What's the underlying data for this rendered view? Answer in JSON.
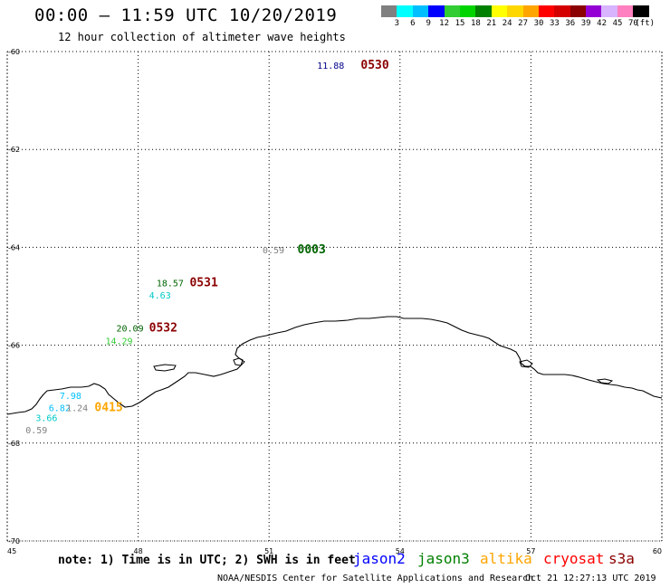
{
  "header": {
    "title": "00:00 – 11:59 UTC 10/20/2019",
    "subtitle": "12 hour collection of altimeter wave heights"
  },
  "colorbar": {
    "swatches": [
      {
        "label": "3",
        "color": "#808080"
      },
      {
        "label": "6",
        "color": "#00ffff"
      },
      {
        "label": "9",
        "color": "#00bfff"
      },
      {
        "label": "12",
        "color": "#0000ff"
      },
      {
        "label": "15",
        "color": "#32cd32"
      },
      {
        "label": "18",
        "color": "#00d400"
      },
      {
        "label": "21",
        "color": "#008000"
      },
      {
        "label": "24",
        "color": "#ffff00"
      },
      {
        "label": "27",
        "color": "#ffd700"
      },
      {
        "label": "30",
        "color": "#ffa500"
      },
      {
        "label": "33",
        "color": "#ff0000"
      },
      {
        "label": "36",
        "color": "#d40000"
      },
      {
        "label": "39",
        "color": "#8b0000"
      },
      {
        "label": "42",
        "color": "#9400d3"
      },
      {
        "label": "45",
        "color": "#d8b4fe"
      },
      {
        "label": "70",
        "color": "#ff80c0"
      },
      {
        "label": "",
        "color": "#000000"
      }
    ],
    "unit": "(ft)"
  },
  "map": {
    "lat_labels": [
      "-60",
      "-62",
      "-64",
      "-66",
      "-68",
      "-70"
    ],
    "lon_labels": [
      "45",
      "48",
      "51",
      "54",
      "57",
      "60"
    ],
    "lat_values": [
      -60,
      -62,
      -64,
      -66,
      -68,
      -70
    ],
    "lon_values": [
      45,
      48,
      51,
      54,
      57,
      60
    ],
    "observations": [
      {
        "text": "11.88",
        "lon": 52.1,
        "lat": -60.35,
        "color": "#00008b",
        "size": 10,
        "kind": "value"
      },
      {
        "text": "0530",
        "lon": 53.1,
        "lat": -60.35,
        "color": "#8b0000",
        "size": 13,
        "kind": "time"
      },
      {
        "text": "0.59",
        "lon": 50.85,
        "lat": -64.12,
        "color": "#808080",
        "size": 10,
        "kind": "value"
      },
      {
        "text": "0003",
        "lon": 51.65,
        "lat": -64.12,
        "color": "#006400",
        "size": 13,
        "kind": "time"
      },
      {
        "text": "18.57",
        "lon": 48.42,
        "lat": -64.8,
        "color": "#006400",
        "size": 10,
        "kind": "value"
      },
      {
        "text": "0531",
        "lon": 49.18,
        "lat": -64.8,
        "color": "#8b0000",
        "size": 13,
        "kind": "time"
      },
      {
        "text": "4.63",
        "lon": 48.25,
        "lat": -65.05,
        "color": "#00c8c8",
        "size": 10,
        "kind": "value"
      },
      {
        "text": "20.09",
        "lon": 47.5,
        "lat": -65.72,
        "color": "#006400",
        "size": 10,
        "kind": "value"
      },
      {
        "text": "0532",
        "lon": 48.25,
        "lat": -65.72,
        "color": "#8b0000",
        "size": 13,
        "kind": "time"
      },
      {
        "text": "14.29",
        "lon": 47.25,
        "lat": -65.98,
        "color": "#32cd32",
        "size": 10,
        "kind": "value"
      },
      {
        "text": "7.98",
        "lon": 46.2,
        "lat": -67.1,
        "color": "#00bfff",
        "size": 10,
        "kind": "value"
      },
      {
        "text": "6.82",
        "lon": 45.95,
        "lat": -67.35,
        "color": "#00bfff",
        "size": 10,
        "kind": "value"
      },
      {
        "text": "1.24",
        "lon": 46.35,
        "lat": -67.35,
        "color": "#808080",
        "size": 10,
        "kind": "value"
      },
      {
        "text": "0415",
        "lon": 47.0,
        "lat": -67.35,
        "color": "#ffa500",
        "size": 13,
        "kind": "time"
      },
      {
        "text": "3.66",
        "lon": 45.65,
        "lat": -67.55,
        "color": "#00c8c8",
        "size": 10,
        "kind": "value"
      },
      {
        "text": "0.59",
        "lon": 45.42,
        "lat": -67.8,
        "color": "#808080",
        "size": 10,
        "kind": "value"
      }
    ]
  },
  "footer": {
    "note": "note: 1) Time is in UTC; 2) SWH is in feet",
    "legend": [
      {
        "label": "jason2",
        "color": "#0000ff"
      },
      {
        "label": "jason3",
        "color": "#008000"
      },
      {
        "label": "altika",
        "color": "#ffa500"
      },
      {
        "label": "cryosat",
        "color": "#ff0000"
      },
      {
        "label": "s3a",
        "color": "#8b0000"
      }
    ],
    "credit": "NOAA/NESDIS Center for Satellite Applications and Research",
    "timestamp": "Oct 21 12:27:13 UTC 2019"
  }
}
